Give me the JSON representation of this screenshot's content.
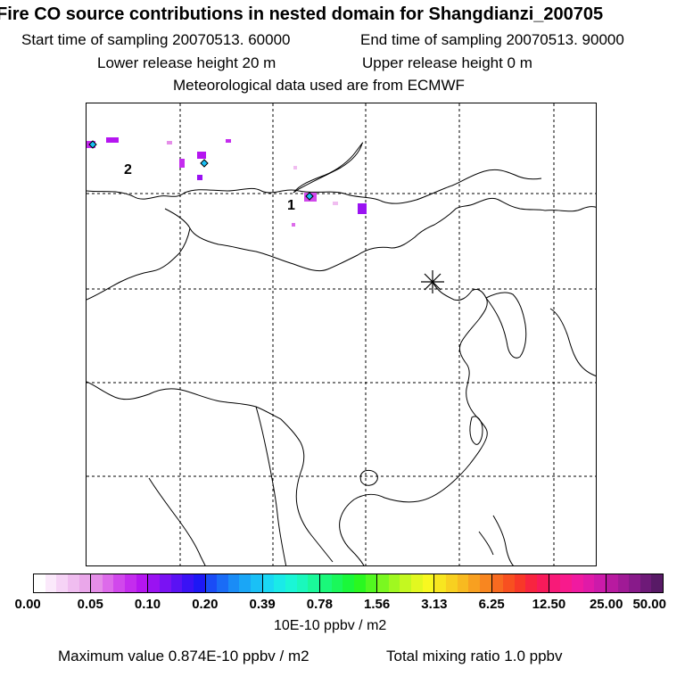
{
  "header": {
    "title": "Fire CO source contributions in nested domain for Shangdianzi_200705",
    "start_time": "Start time of sampling 20070513. 60000",
    "end_time": "End time of sampling 20070513. 90000",
    "lower_release": "Lower release height   20 m",
    "upper_release": "Upper release height    0 m",
    "met_data": "Meteorological data used are from ECMWF"
  },
  "map": {
    "source_labels": [
      "1",
      "2"
    ],
    "receptor_icon": "asterisk-station-marker",
    "coastline_color": "#000000",
    "grid_color": "#000000"
  },
  "legend": {
    "tick_labels": [
      "0.00",
      "0.05",
      "0.10",
      "0.20",
      "0.39",
      "0.78",
      "1.56",
      "3.13",
      "6.25",
      "12.50",
      "25.00",
      "50.00"
    ],
    "groups": [
      [
        "#ffffff",
        "#fbe9fb",
        "#f6d3f6",
        "#f0bdf0",
        "#eaa7ea"
      ],
      [
        "#e58ee8",
        "#dd6bea",
        "#d148ec",
        "#c42cee",
        "#b515f0"
      ],
      [
        "#9a12f2",
        "#7a12f3",
        "#5a12f4",
        "#3a12f5",
        "#1d18f5"
      ],
      [
        "#1a4cf6",
        "#1a6cf6",
        "#1a8cf6",
        "#1aa6f6",
        "#1ac0f6"
      ],
      [
        "#1ad8f4",
        "#1aeae8",
        "#1af6d6",
        "#1af8bc",
        "#1af89a"
      ],
      [
        "#1af87a",
        "#1af85a",
        "#1af83a",
        "#2af820",
        "#52f820"
      ],
      [
        "#7af820",
        "#a0f820",
        "#c4f820",
        "#e2f820",
        "#f8f820"
      ],
      [
        "#f8e620",
        "#f8d020",
        "#f8ba20",
        "#f8a020",
        "#f88620"
      ],
      [
        "#f86a20",
        "#f85020",
        "#f83828",
        "#f82440",
        "#f81a5a"
      ],
      [
        "#f81a78",
        "#f81a8c",
        "#f01aa0",
        "#e01aa8",
        "#cc1aaa"
      ],
      [
        "#b81aa0",
        "#a01a96",
        "#881a8a",
        "#6e1a78",
        "#581a66"
      ]
    ],
    "units": "10E-10 ppbv / m2",
    "max_value": "Maximum value  0.874E-10 ppbv / m2",
    "mixing_ratio": "Total mixing ratio       1.0 ppbv"
  }
}
